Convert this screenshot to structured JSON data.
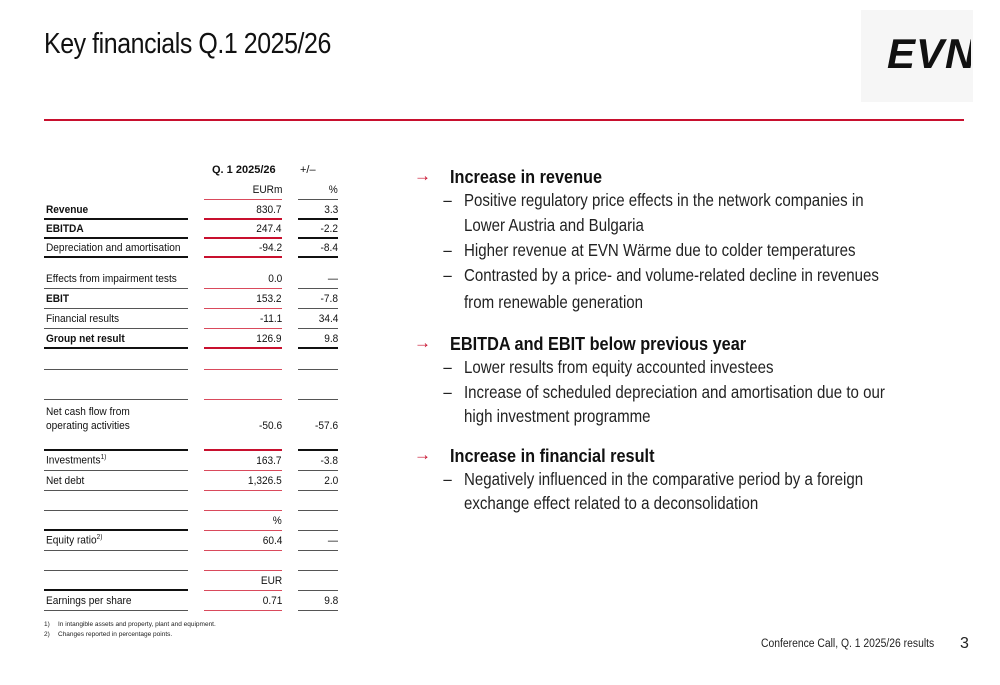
{
  "title": "Key financials Q.1 2025/26",
  "logo_text": "EVN",
  "colors": {
    "accent": "#c8102e",
    "text": "#111111"
  },
  "table": {
    "col_period": "Q. 1 2025/26",
    "col_change": "+/–",
    "unit_eurm": "EURm",
    "unit_pct": "%",
    "rows": [
      {
        "label": "Revenue",
        "value": "830.7",
        "change": "3.3"
      },
      {
        "label": "EBITDA",
        "value": "247.4",
        "change": "-2.2"
      },
      {
        "label": "Depreciation and amortisation",
        "value": "-94.2",
        "change": "-8.4"
      },
      {
        "label": "Effects from impairment tests",
        "value": "0.0",
        "change": "—"
      },
      {
        "label": "EBIT",
        "value": "153.2",
        "change": "-7.8"
      },
      {
        "label": "Financial results",
        "value": "-11.1",
        "change": "34.4"
      },
      {
        "label": "Group net result",
        "value": "126.9",
        "change": "9.8"
      },
      {
        "label_line1": "Net cash flow from",
        "label_line2": "operating activities",
        "value": "-50.6",
        "change": "-57.6"
      },
      {
        "label": "Investments",
        "sup": "1)",
        "value": "163.7",
        "change": "-3.8"
      },
      {
        "label": "Net debt",
        "value": "1,326.5",
        "change": "2.0"
      },
      {
        "unit": "%"
      },
      {
        "label": "Equity ratio",
        "sup": "2)",
        "value": "60.4",
        "change": "—"
      },
      {
        "unit": "EUR"
      },
      {
        "label": "Earnings per share",
        "value": "0.71",
        "change": "9.8"
      }
    ]
  },
  "footnotes": [
    {
      "num": "1)",
      "text": "In intangible assets and property, plant and equipment."
    },
    {
      "num": "2)",
      "text": "Changes reported in percentage points."
    }
  ],
  "sections": [
    {
      "arrow": "→",
      "heading": "Increase in revenue",
      "bullets": [
        "Positive regulatory price effects in the network companies in",
        "Lower Austria and Bulgaria",
        "Higher revenue at EVN Wärme due to colder temperatures",
        "Contrasted by a price- and volume-related decline in revenues",
        "from renewable generation"
      ]
    },
    {
      "arrow": "→",
      "heading": "EBITDA and EBIT below previous year",
      "bullets": [
        "Lower results from equity accounted investees",
        "Increase of scheduled depreciation and amortisation due to our",
        "high investment programme"
      ]
    },
    {
      "arrow": "→",
      "heading": "Increase in financial result",
      "bullets": [
        "Negatively influenced in the comparative period by a foreign",
        "exchange effect related to a deconsolidation"
      ]
    }
  ],
  "dash": "–",
  "footer": "Conference Call, Q. 1 2025/26 results",
  "page_number": "3"
}
